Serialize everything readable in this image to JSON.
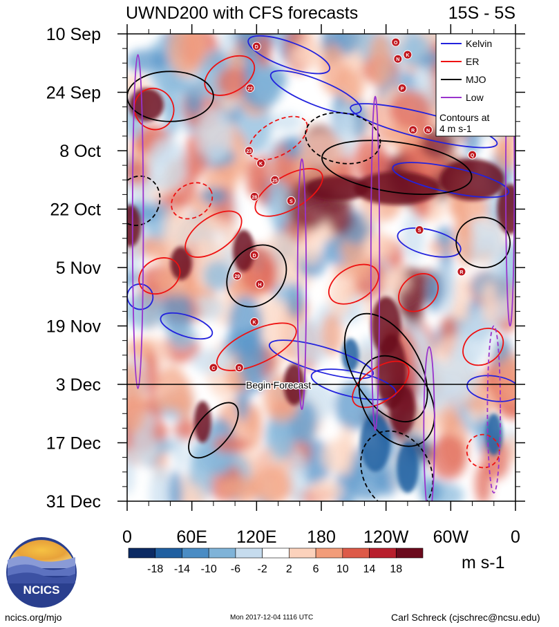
{
  "chart_data": {
    "type": "heatmap",
    "title": "UWND200 with CFS forecasts",
    "region": "15S - 5S",
    "y_ticks": [
      "10 Sep",
      "24 Sep",
      "8 Oct",
      "22 Oct",
      "5 Nov",
      "19 Nov",
      "3 Dec",
      "17 Dec",
      "31 Dec"
    ],
    "x_ticks": [
      "0",
      "60E",
      "120E",
      "180",
      "120W",
      "60W",
      "0"
    ],
    "x_range_deg": [
      0,
      360
    ],
    "y_range_days": [
      0,
      112
    ],
    "forecast_line": {
      "label": "Begin Forecast",
      "day": 84
    },
    "legend": {
      "entries": [
        {
          "name": "Kelvin",
          "color": "#2222dd"
        },
        {
          "name": "ER",
          "color": "#ee1111"
        },
        {
          "name": "MJO",
          "color": "#000000"
        },
        {
          "name": "Low",
          "color": "#9933cc"
        }
      ],
      "note_line1": "Contours at",
      "note_line2": "4 m s-1"
    },
    "colorbar": {
      "labels": [
        "-18",
        "-14",
        "-10",
        "-6",
        "-2",
        "2",
        "6",
        "10",
        "14",
        "18"
      ],
      "colors": [
        "#0b2a63",
        "#1f5fa0",
        "#4a8cc4",
        "#7fb3d8",
        "#c6dcee",
        "#ffffff",
        "#fcd2bc",
        "#f29c79",
        "#dd5a48",
        "#b81f2d",
        "#6b0a1d"
      ],
      "units": "m s-1"
    },
    "tropical_cyclones": [
      {
        "mark": "D",
        "lon": 120,
        "day": 3
      },
      {
        "mark": "O",
        "lon": 249,
        "day": 2
      },
      {
        "mark": "N",
        "lon": 251,
        "day": 6
      },
      {
        "mark": "K",
        "lon": 260,
        "day": 5
      },
      {
        "mark": "22",
        "lon": 114,
        "day": 13
      },
      {
        "mark": "P",
        "lon": 255,
        "day": 13
      },
      {
        "mark": "R",
        "lon": 265,
        "day": 23
      },
      {
        "mark": "N",
        "lon": 279,
        "day": 23
      },
      {
        "mark": "23",
        "lon": 113,
        "day": 28
      },
      {
        "mark": "Q",
        "lon": 320,
        "day": 29
      },
      {
        "mark": "K",
        "lon": 124,
        "day": 31
      },
      {
        "mark": "25",
        "lon": 137,
        "day": 35
      },
      {
        "mark": "28",
        "lon": 118,
        "day": 39
      },
      {
        "mark": "S",
        "lon": 152,
        "day": 40
      },
      {
        "mark": "S",
        "lon": 271,
        "day": 47
      },
      {
        "mark": "D",
        "lon": 118,
        "day": 53
      },
      {
        "mark": "R",
        "lon": 310,
        "day": 57
      },
      {
        "mark": "29",
        "lon": 102,
        "day": 58
      },
      {
        "mark": "H",
        "lon": 123,
        "day": 60
      },
      {
        "mark": "K",
        "lon": 118,
        "day": 69
      },
      {
        "mark": "C",
        "lon": 80,
        "day": 80
      },
      {
        "mark": "D",
        "lon": 104,
        "day": 80
      }
    ]
  },
  "footer": {
    "logo_text": "NCICS",
    "left": "ncics.org/mjo",
    "center": "Mon 2017-12-04 1116 UTC",
    "right": "Carl Schreck (cjschrec@ncsu.edu)"
  }
}
